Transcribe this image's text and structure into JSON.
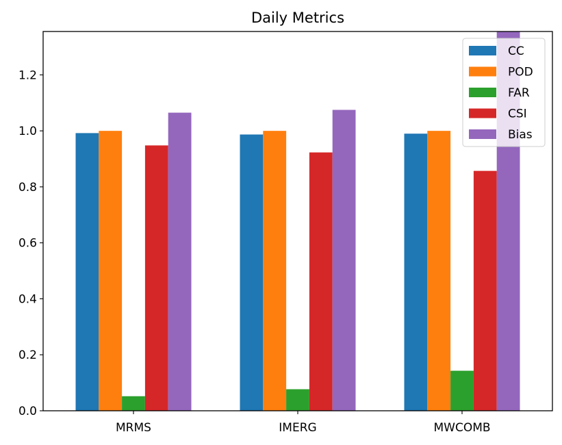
{
  "chart_data": {
    "type": "bar",
    "title": "Daily Metrics",
    "xlabel": "",
    "ylabel": "",
    "categories": [
      "MRMS",
      "IMERG",
      "MWCOMB"
    ],
    "series": [
      {
        "name": "CC",
        "color": "#1f77b4",
        "values": [
          0.992,
          0.987,
          0.99
        ]
      },
      {
        "name": "POD",
        "color": "#ff7f0e",
        "values": [
          1.0,
          1.0,
          1.0
        ]
      },
      {
        "name": "FAR",
        "color": "#2ca02c",
        "values": [
          0.052,
          0.077,
          0.143
        ]
      },
      {
        "name": "CSI",
        "color": "#d62728",
        "values": [
          0.948,
          0.923,
          0.857
        ]
      },
      {
        "name": "Bias",
        "color": "#9467bd",
        "values": [
          1.065,
          1.075,
          1.36
        ]
      }
    ],
    "ylim": [
      0,
      1.355
    ],
    "yticks": [
      "0.0",
      "0.2",
      "0.4",
      "0.6",
      "0.8",
      "1.0",
      "1.2"
    ],
    "grid": false,
    "legend_position": "top-right"
  }
}
